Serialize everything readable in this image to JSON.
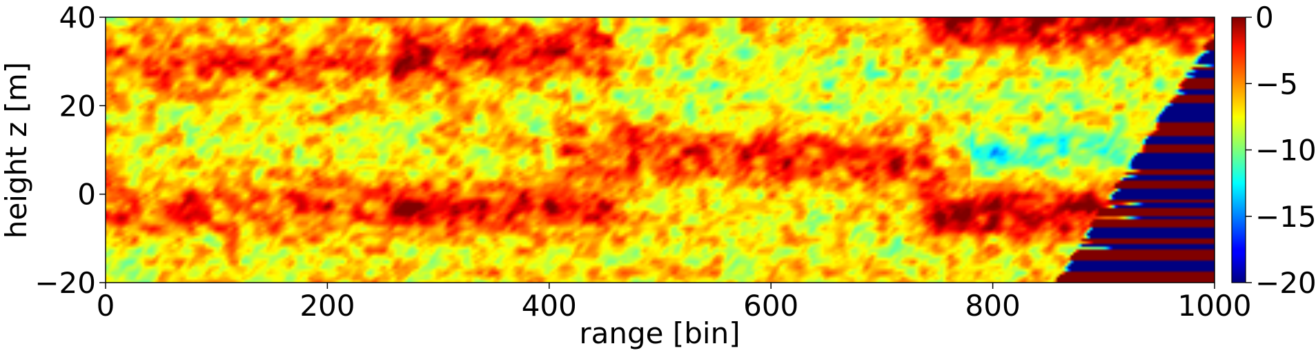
{
  "chart_data": {
    "type": "heatmap",
    "title": "",
    "xlabel": "range [bin]",
    "ylabel": "height z [m]",
    "xlim": [
      0,
      1000
    ],
    "ylim": [
      -20,
      40
    ],
    "x_ticks": [
      "0",
      "200",
      "400",
      "600",
      "800",
      "1000"
    ],
    "y_ticks": [
      "−20",
      "0",
      "20",
      "40"
    ],
    "colorbar": {
      "colormap": "jet",
      "range": [
        -20,
        0
      ],
      "ticks": [
        "0",
        "−5",
        "−10",
        "−15",
        "−20"
      ]
    },
    "bands": [
      {
        "x": [
          0,
          270
        ],
        "z": 30,
        "level": -4
      },
      {
        "x": [
          0,
          270
        ],
        "z": -3,
        "level": -4
      },
      {
        "x": [
          270,
          450
        ],
        "z": 32,
        "level": -2.5
      },
      {
        "x": [
          270,
          450
        ],
        "z": -3,
        "level": -2.5
      },
      {
        "x": [
          420,
          740
        ],
        "z": 9,
        "level": -3
      },
      {
        "x": [
          750,
          1000
        ],
        "z": -4,
        "level": -1.5
      },
      {
        "x": [
          750,
          1000
        ],
        "z": 39,
        "level": -1.5
      }
    ],
    "low_zones": [
      {
        "x": [
          780,
          1000
        ],
        "z": 10,
        "level": -12
      },
      {
        "x": [
          420,
          750
        ],
        "z": 22,
        "level": -10
      },
      {
        "x": [
          750,
          1000
        ],
        "z": 25,
        "level": -9
      }
    ],
    "minimum": {
      "x": 810,
      "z": 9,
      "level": -16
    }
  }
}
